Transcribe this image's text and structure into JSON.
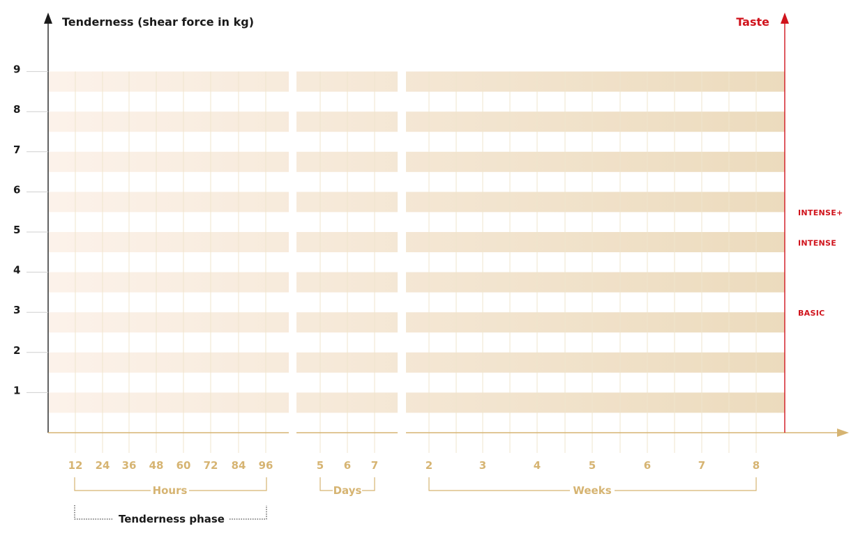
{
  "chart_data": {
    "type": "bar",
    "title": "",
    "ylabel": "Tenderness (shear force in kg)",
    "y2label": "Taste",
    "yticks": [
      "1",
      "2",
      "3",
      "4",
      "5",
      "6",
      "7",
      "8",
      "9"
    ],
    "ylim": [
      0,
      9
    ],
    "grid": true,
    "segments": [
      {
        "name": "Hours",
        "ticks": [
          "12",
          "24",
          "36",
          "48",
          "60",
          "72",
          "84",
          "96"
        ]
      },
      {
        "name": "Days",
        "ticks": [
          "5",
          "6",
          "7"
        ]
      },
      {
        "name": "Weeks",
        "ticks": [
          "2",
          "3",
          "4",
          "5",
          "6",
          "7",
          "8"
        ]
      }
    ],
    "phase": {
      "label": "Tenderness phase",
      "segment": "Hours"
    },
    "taste_levels": [
      {
        "label": "BASIC",
        "y": 3.0
      },
      {
        "label": "INTENSE",
        "y": 4.75
      },
      {
        "label": "INTENSE+",
        "y": 5.5
      }
    ],
    "colors": {
      "band_start": "#fcf2ea",
      "band_end": "#ecdbbd",
      "grid_line": "#efe5cd",
      "axis_gold": "#d6b472",
      "axis_dark": "#3a3a3a",
      "taste_red": "#d0131c"
    }
  }
}
